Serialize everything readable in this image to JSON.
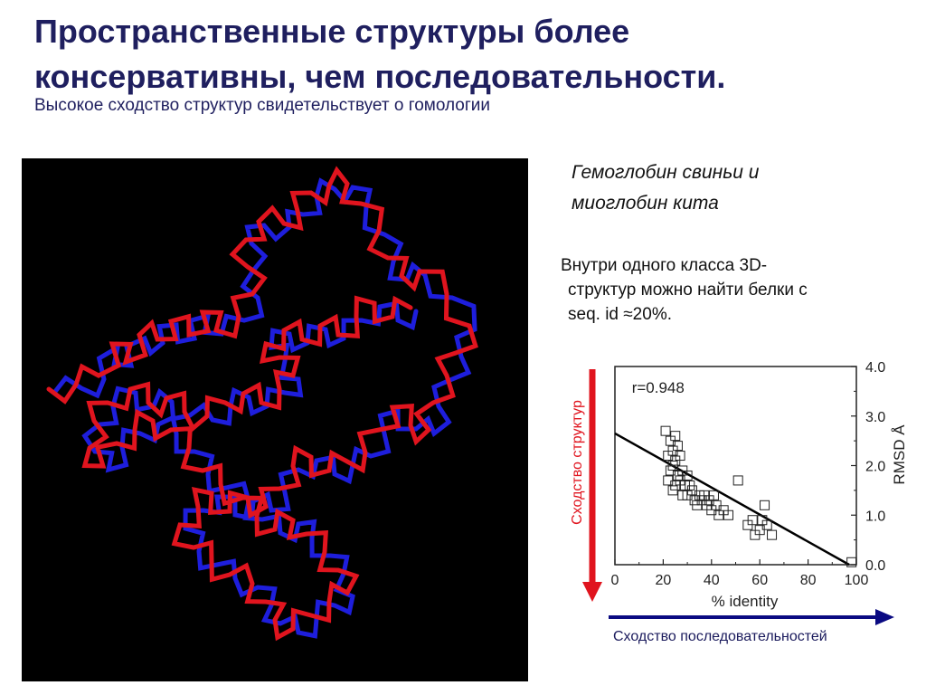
{
  "slide": {
    "title_line1": "Пространственные структуры более",
    "title_line2": "консервативны, чем последовательности.",
    "subtitle": "Высокое сходство структур свидетельствует о гомологии",
    "caption_line1": "Гемоглобин свиньи и",
    "caption_line2": "миоглобин кита",
    "note_line1": "Внутри одного класса 3D-",
    "note_line2": "структур можно найти белки с",
    "note_line3": "seq. id ≈20%."
  },
  "molecule": {
    "colors": {
      "background": "#000000",
      "chain1": "#e0141e",
      "chain2": "#1e1edc"
    }
  },
  "chart_data": {
    "type": "scatter",
    "title": "",
    "annotation": "r=0.948",
    "xlabel": "% identity",
    "ylabel": "RMSD Å",
    "xlim": [
      0,
      100
    ],
    "ylim": [
      0,
      4
    ],
    "xticks": [
      0,
      20,
      40,
      60,
      80,
      100
    ],
    "yticks": [
      0.0,
      1.0,
      2.0,
      3.0,
      4.0
    ],
    "ytick_labels": [
      "0.0",
      "1.0",
      "2.0",
      "3.0",
      "4.0"
    ],
    "grid": false,
    "marker": "hollow-square",
    "points": [
      [
        21,
        2.7
      ],
      [
        23,
        2.5
      ],
      [
        24,
        2.3
      ],
      [
        25,
        2.6
      ],
      [
        22,
        2.2
      ],
      [
        26,
        2.4
      ],
      [
        24,
        2.0
      ],
      [
        25,
        2.1
      ],
      [
        27,
        2.2
      ],
      [
        23,
        1.9
      ],
      [
        26,
        1.8
      ],
      [
        28,
        1.9
      ],
      [
        22,
        1.7
      ],
      [
        25,
        1.6
      ],
      [
        27,
        1.7
      ],
      [
        29,
        1.6
      ],
      [
        24,
        1.5
      ],
      [
        30,
        1.8
      ],
      [
        31,
        1.6
      ],
      [
        28,
        1.4
      ],
      [
        30,
        1.4
      ],
      [
        32,
        1.5
      ],
      [
        33,
        1.3
      ],
      [
        35,
        1.4
      ],
      [
        34,
        1.2
      ],
      [
        36,
        1.3
      ],
      [
        38,
        1.2
      ],
      [
        37,
        1.4
      ],
      [
        39,
        1.3
      ],
      [
        40,
        1.1
      ],
      [
        42,
        1.2
      ],
      [
        43,
        1.0
      ],
      [
        45,
        1.1
      ],
      [
        41,
        1.4
      ],
      [
        47,
        1.0
      ],
      [
        51,
        1.7
      ],
      [
        55,
        0.8
      ],
      [
        57,
        0.9
      ],
      [
        58,
        0.6
      ],
      [
        60,
        0.7
      ],
      [
        61,
        0.9
      ],
      [
        62,
        1.2
      ],
      [
        63,
        0.8
      ],
      [
        65,
        0.6
      ],
      [
        98,
        0.05
      ]
    ],
    "fit_line": {
      "from": [
        0,
        2.65
      ],
      "to": [
        97,
        0.0
      ]
    }
  },
  "arrows": {
    "structure_label": "Сходство структур",
    "sequence_label": "Сходство последовательностей",
    "structure_color": "#e0141e",
    "sequence_color": "#0a0a82"
  }
}
